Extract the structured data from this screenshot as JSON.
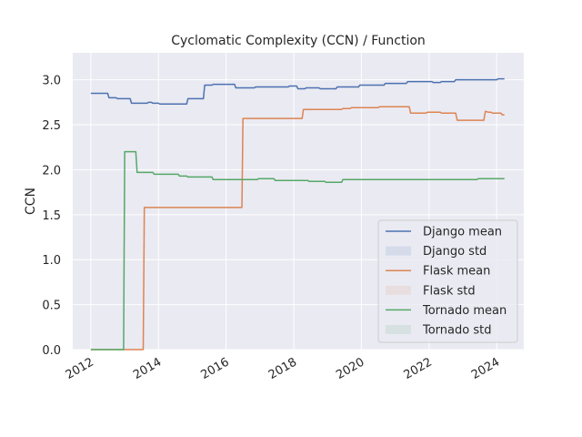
{
  "chart_data": {
    "type": "line",
    "title": "Cyclomatic Complexity (CCN) / Function",
    "xlabel": "",
    "ylabel": "CCN",
    "xlim": [
      "2011-06-20",
      "2024-10-20"
    ],
    "ylim": [
      0,
      3.3
    ],
    "x_ticks": [
      "2012",
      "2014",
      "2016",
      "2018",
      "2020",
      "2022",
      "2024"
    ],
    "y_ticks": [
      "0.0",
      "0.5",
      "1.0",
      "1.5",
      "2.0",
      "2.5",
      "3.0"
    ],
    "grid": true,
    "legend_position": "lower-right",
    "legend": [
      "Django mean",
      "Django std",
      "Flask mean",
      "Flask std",
      "Tornado mean",
      "Tornado std"
    ],
    "series": [
      {
        "name": "Django mean",
        "color": "#4c72b0",
        "points": [
          [
            "2012-01-01",
            2.85
          ],
          [
            "2012-07-01",
            2.85
          ],
          [
            "2012-07-15",
            2.8
          ],
          [
            "2012-10-01",
            2.8
          ],
          [
            "2012-10-15",
            2.79
          ],
          [
            "2013-03-01",
            2.79
          ],
          [
            "2013-03-15",
            2.74
          ],
          [
            "2013-09-01",
            2.74
          ],
          [
            "2013-09-15",
            2.75
          ],
          [
            "2013-10-15",
            2.75
          ],
          [
            "2013-11-01",
            2.74
          ],
          [
            "2014-01-01",
            2.74
          ],
          [
            "2014-01-15",
            2.73
          ],
          [
            "2014-11-01",
            2.73
          ],
          [
            "2014-11-15",
            2.79
          ],
          [
            "2015-05-01",
            2.79
          ],
          [
            "2015-05-15",
            2.94
          ],
          [
            "2015-08-01",
            2.94
          ],
          [
            "2015-08-15",
            2.95
          ],
          [
            "2016-04-01",
            2.95
          ],
          [
            "2016-04-15",
            2.91
          ],
          [
            "2016-11-01",
            2.91
          ],
          [
            "2016-11-15",
            2.92
          ],
          [
            "2017-01-01",
            2.92
          ],
          [
            "2017-01-15",
            2.92
          ],
          [
            "2017-11-01",
            2.92
          ],
          [
            "2017-11-15",
            2.93
          ],
          [
            "2018-02-01",
            2.93
          ],
          [
            "2018-02-15",
            2.9
          ],
          [
            "2018-05-01",
            2.9
          ],
          [
            "2018-05-15",
            2.91
          ],
          [
            "2018-10-01",
            2.91
          ],
          [
            "2018-10-15",
            2.9
          ],
          [
            "2019-04-01",
            2.9
          ],
          [
            "2019-04-15",
            2.92
          ],
          [
            "2019-12-01",
            2.92
          ],
          [
            "2019-12-15",
            2.94
          ],
          [
            "2020-09-01",
            2.94
          ],
          [
            "2020-09-15",
            2.96
          ],
          [
            "2021-05-01",
            2.96
          ],
          [
            "2021-05-15",
            2.98
          ],
          [
            "2022-02-01",
            2.98
          ],
          [
            "2022-02-15",
            2.97
          ],
          [
            "2022-05-01",
            2.97
          ],
          [
            "2022-05-15",
            2.98
          ],
          [
            "2022-10-01",
            2.98
          ],
          [
            "2022-10-15",
            3.0
          ],
          [
            "2024-01-01",
            3.0
          ],
          [
            "2024-01-15",
            3.01
          ],
          [
            "2024-03-25",
            3.01
          ]
        ]
      },
      {
        "name": "Flask mean",
        "color": "#dd8452",
        "points": [
          [
            "2012-01-01",
            0.0
          ],
          [
            "2013-07-20",
            0.0
          ],
          [
            "2013-08-01",
            1.58
          ],
          [
            "2016-06-20",
            1.58
          ],
          [
            "2016-07-01",
            2.57
          ],
          [
            "2018-04-01",
            2.57
          ],
          [
            "2018-04-15",
            2.67
          ],
          [
            "2019-06-01",
            2.67
          ],
          [
            "2019-06-15",
            2.68
          ],
          [
            "2019-09-01",
            2.68
          ],
          [
            "2019-09-15",
            2.69
          ],
          [
            "2020-07-01",
            2.69
          ],
          [
            "2020-07-15",
            2.7
          ],
          [
            "2021-06-01",
            2.7
          ],
          [
            "2021-06-15",
            2.63
          ],
          [
            "2021-12-01",
            2.63
          ],
          [
            "2021-12-15",
            2.64
          ],
          [
            "2022-05-01",
            2.64
          ],
          [
            "2022-05-15",
            2.63
          ],
          [
            "2022-10-15",
            2.63
          ],
          [
            "2022-11-01",
            2.55
          ],
          [
            "2023-08-15",
            2.55
          ],
          [
            "2023-09-01",
            2.65
          ],
          [
            "2023-10-01",
            2.64
          ],
          [
            "2023-11-01",
            2.64
          ],
          [
            "2023-11-15",
            2.63
          ],
          [
            "2024-02-15",
            2.63
          ],
          [
            "2024-03-01",
            2.61
          ],
          [
            "2024-03-25",
            2.61
          ]
        ]
      },
      {
        "name": "Tornado mean",
        "color": "#55a868",
        "points": [
          [
            "2012-01-01",
            0.0
          ],
          [
            "2012-12-20",
            0.0
          ],
          [
            "2013-01-01",
            2.2
          ],
          [
            "2013-05-01",
            2.2
          ],
          [
            "2013-05-15",
            1.97
          ],
          [
            "2013-11-01",
            1.97
          ],
          [
            "2013-11-15",
            1.95
          ],
          [
            "2014-08-01",
            1.95
          ],
          [
            "2014-08-15",
            1.93
          ],
          [
            "2014-11-01",
            1.93
          ],
          [
            "2014-11-15",
            1.92
          ],
          [
            "2015-08-01",
            1.92
          ],
          [
            "2015-08-15",
            1.89
          ],
          [
            "2016-12-01",
            1.89
          ],
          [
            "2016-12-15",
            1.9
          ],
          [
            "2017-06-01",
            1.9
          ],
          [
            "2017-06-15",
            1.88
          ],
          [
            "2018-06-01",
            1.88
          ],
          [
            "2018-06-15",
            1.87
          ],
          [
            "2018-12-01",
            1.87
          ],
          [
            "2018-12-15",
            1.86
          ],
          [
            "2019-06-01",
            1.86
          ],
          [
            "2019-06-15",
            1.89
          ],
          [
            "2023-06-01",
            1.89
          ],
          [
            "2023-06-15",
            1.9
          ],
          [
            "2024-03-25",
            1.9
          ]
        ]
      }
    ],
    "std_bands": [
      {
        "name": "Django std",
        "color": "#4c72b0"
      },
      {
        "name": "Flask std",
        "color": "#dd8452"
      },
      {
        "name": "Tornado std",
        "color": "#55a868"
      }
    ]
  }
}
